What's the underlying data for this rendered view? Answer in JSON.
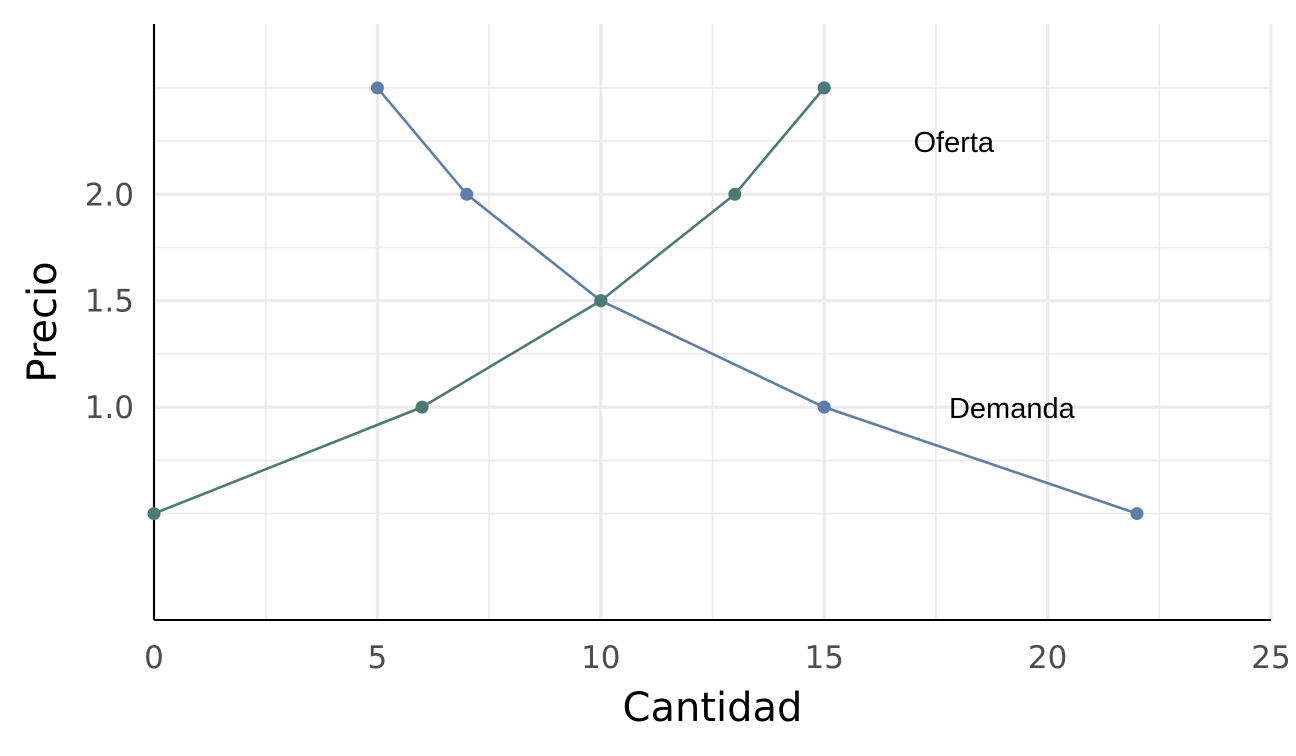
{
  "chart_data": {
    "type": "line",
    "xlabel": "Cantidad",
    "ylabel": "Precio",
    "xlim": [
      0,
      25
    ],
    "ylim": [
      0.0,
      2.8
    ],
    "x_ticks": [
      0,
      5,
      10,
      15,
      20,
      25
    ],
    "y_ticks": [
      1.0,
      1.5,
      2.0
    ],
    "x_tick_labels": [
      "0",
      "5",
      "10",
      "15",
      "20",
      "25"
    ],
    "y_tick_labels": [
      "1.0",
      "1.5",
      "2.0"
    ],
    "x_minor_ticks": [
      2.5,
      7.5,
      12.5,
      17.5,
      22.5
    ],
    "y_minor_ticks": [
      0.5,
      0.75,
      1.25,
      1.75,
      2.25,
      2.5
    ],
    "grid": true,
    "series": [
      {
        "name": "Demanda",
        "color": "#5b7fa8",
        "points": [
          {
            "x": 5,
            "y": 2.5
          },
          {
            "x": 7,
            "y": 2.0
          },
          {
            "x": 10,
            "y": 1.5
          },
          {
            "x": 15,
            "y": 1.0
          },
          {
            "x": 22,
            "y": 0.5
          }
        ],
        "label_at": {
          "x": 19.2,
          "y": 1.0
        }
      },
      {
        "name": "Oferta",
        "color": "#4b7a77",
        "points": [
          {
            "x": 0,
            "y": 0.5
          },
          {
            "x": 6,
            "y": 1.0
          },
          {
            "x": 10,
            "y": 1.5
          },
          {
            "x": 13,
            "y": 2.0
          },
          {
            "x": 15,
            "y": 2.5
          }
        ],
        "label_at": {
          "x": 17.9,
          "y": 2.25
        }
      }
    ]
  }
}
